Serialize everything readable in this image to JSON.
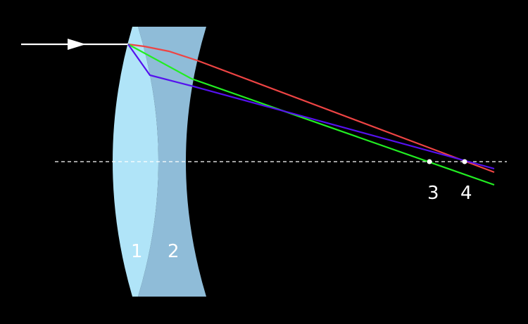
{
  "labels": {
    "lens1": "1",
    "lens2": "2",
    "focus3": "3",
    "focus4": "4"
  },
  "colors": {
    "background": "#000000",
    "lens1": "#b0e4f8",
    "lens2": "#8fbcd8",
    "incident_ray": "#ffffff",
    "red_ray": "#ee4444",
    "green_ray": "#22ee22",
    "blue_ray": "#5511ee",
    "axis": "#ffffff"
  }
}
